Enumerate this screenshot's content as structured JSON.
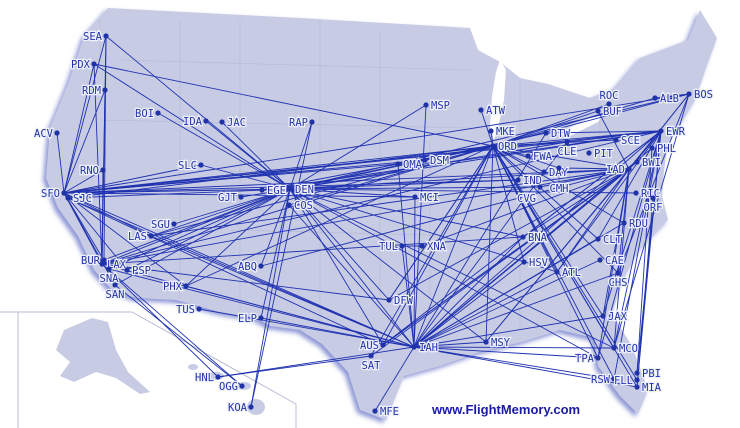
{
  "map": {
    "watermark": "www.FlightMemory.com",
    "colors": {
      "land": "#c8cbe4",
      "route": "#1f32b0",
      "airport": "#1f32a8",
      "label": "#2233aa",
      "border": "#a9acc4",
      "shadow": "#8e97d6"
    },
    "airports": [
      "SEA",
      "PDX",
      "RDM",
      "ACV",
      "RNO",
      "SFO",
      "SJC",
      "BOI",
      "IDA",
      "JAC",
      "SLC",
      "RAP",
      "GJT",
      "EGE",
      "DEN",
      "COS",
      "SGU",
      "LAS",
      "BUR",
      "LAX",
      "SNA",
      "PSP",
      "SAN",
      "PHX",
      "ABQ",
      "TUS",
      "ELP",
      "HNL",
      "OGG",
      "KOA",
      "MSP",
      "ATW",
      "MKE",
      "ORD",
      "OMA",
      "DSM",
      "MCI",
      "DTW",
      "CLE",
      "FWA",
      "DAY",
      "CMH",
      "IND",
      "CVG",
      "PIT",
      "SCE",
      "BUF",
      "ROC",
      "ALB",
      "BOS",
      "EWR",
      "PHL",
      "BWI",
      "IAD",
      "RIC",
      "ORF",
      "RDU",
      "CLT",
      "CAE",
      "CHS",
      "BNA",
      "HSV",
      "ATL",
      "TUL",
      "XNA",
      "DFW",
      "AUS",
      "IAH",
      "SAT",
      "MSY",
      "JAX",
      "MCO",
      "TPA",
      "RSW",
      "PBI",
      "FLL",
      "MIA",
      "MFE"
    ],
    "routes": [
      [
        "SEA",
        "SFO"
      ],
      [
        "SEA",
        "LAX"
      ],
      [
        "SEA",
        "DEN"
      ],
      [
        "SEA",
        "BUR"
      ],
      [
        "PDX",
        "SFO"
      ],
      [
        "PDX",
        "LAX"
      ],
      [
        "PDX",
        "ORD"
      ],
      [
        "PDX",
        "DEN"
      ],
      [
        "RDM",
        "SFO"
      ],
      [
        "RDM",
        "LAX"
      ],
      [
        "ACV",
        "SFO"
      ],
      [
        "RNO",
        "LAX"
      ],
      [
        "RNO",
        "SFO"
      ],
      [
        "BOI",
        "DEN"
      ],
      [
        "IDA",
        "DEN"
      ],
      [
        "JAC",
        "DEN"
      ],
      [
        "SLC",
        "DEN"
      ],
      [
        "SLC",
        "SFO"
      ],
      [
        "RAP",
        "DEN"
      ],
      [
        "RAP",
        "KOA"
      ],
      [
        "SFO",
        "DEN"
      ],
      [
        "SFO",
        "ORD"
      ],
      [
        "SFO",
        "EWR"
      ],
      [
        "SFO",
        "IAD"
      ],
      [
        "SFO",
        "IAH"
      ],
      [
        "SFO",
        "BOS"
      ],
      [
        "SFO",
        "LAS"
      ],
      [
        "SFO",
        "LAX"
      ],
      [
        "SFO",
        "SAN"
      ],
      [
        "SFO",
        "PHX"
      ],
      [
        "SFO",
        "OMA"
      ],
      [
        "SFO",
        "DSM"
      ],
      [
        "SFO",
        "CLE"
      ],
      [
        "SFO",
        "MCI"
      ],
      [
        "SFO",
        "PSP"
      ],
      [
        "SFO",
        "SNA"
      ],
      [
        "SJC",
        "ORD"
      ],
      [
        "SJC",
        "DEN"
      ],
      [
        "SJC",
        "IAH"
      ],
      [
        "SJC",
        "AUS"
      ],
      [
        "LAX",
        "DEN"
      ],
      [
        "LAX",
        "ORD"
      ],
      [
        "LAX",
        "IAD"
      ],
      [
        "LAX",
        "EWR"
      ],
      [
        "LAX",
        "IAH"
      ],
      [
        "LAX",
        "HNL"
      ],
      [
        "LAX",
        "OGG"
      ],
      [
        "LAX",
        "DFW"
      ],
      [
        "SNA",
        "DEN"
      ],
      [
        "SNA",
        "IAH"
      ],
      [
        "PSP",
        "DEN"
      ],
      [
        "SAN",
        "DEN"
      ],
      [
        "SAN",
        "OGG"
      ],
      [
        "BUR",
        "DEN"
      ],
      [
        "LAS",
        "DEN"
      ],
      [
        "LAS",
        "ORD"
      ],
      [
        "LAS",
        "IAD"
      ],
      [
        "LAS",
        "IAH"
      ],
      [
        "SGU",
        "DEN"
      ],
      [
        "PHX",
        "DEN"
      ],
      [
        "PHX",
        "IAH"
      ],
      [
        "PHX",
        "ORD"
      ],
      [
        "ABQ",
        "DEN"
      ],
      [
        "ABQ",
        "IAD"
      ],
      [
        "TUS",
        "IAH"
      ],
      [
        "ELP",
        "IAH"
      ],
      [
        "ELP",
        "DEN"
      ],
      [
        "HNL",
        "IAH"
      ],
      [
        "KOA",
        "DEN"
      ],
      [
        "GJT",
        "DEN"
      ],
      [
        "EGE",
        "ORD"
      ],
      [
        "EGE",
        "EWR"
      ],
      [
        "COS",
        "IAH"
      ],
      [
        "COS",
        "ORD"
      ],
      [
        "DEN",
        "ORD"
      ],
      [
        "DEN",
        "EWR"
      ],
      [
        "DEN",
        "IAD"
      ],
      [
        "DEN",
        "IAH"
      ],
      [
        "DEN",
        "MSP"
      ],
      [
        "DEN",
        "BOS"
      ],
      [
        "DEN",
        "ATL"
      ],
      [
        "DEN",
        "DTW"
      ],
      [
        "DEN",
        "MCO"
      ],
      [
        "DEN",
        "TPA"
      ],
      [
        "DEN",
        "BNA"
      ],
      [
        "DEN",
        "DFW"
      ],
      [
        "DEN",
        "MSY"
      ],
      [
        "DEN",
        "AUS"
      ],
      [
        "DEN",
        "MCI"
      ],
      [
        "DEN",
        "CLE"
      ],
      [
        "ORD",
        "EWR"
      ],
      [
        "ORD",
        "BOS"
      ],
      [
        "ORD",
        "IAD"
      ],
      [
        "ORD",
        "IAH"
      ],
      [
        "ORD",
        "ATL"
      ],
      [
        "ORD",
        "MCO"
      ],
      [
        "ORD",
        "MIA"
      ],
      [
        "ORD",
        "TPA"
      ],
      [
        "ORD",
        "FLL"
      ],
      [
        "ORD",
        "SAT"
      ],
      [
        "ORD",
        "AUS"
      ],
      [
        "ORD",
        "ALB"
      ],
      [
        "ORD",
        "BUF"
      ],
      [
        "ORD",
        "ROC"
      ],
      [
        "ORD",
        "SCE"
      ],
      [
        "ORD",
        "CLT"
      ],
      [
        "ORD",
        "RDU"
      ],
      [
        "ORD",
        "DFW"
      ],
      [
        "ORD",
        "CMH"
      ],
      [
        "ORD",
        "DAY"
      ],
      [
        "ORD",
        "FWA"
      ],
      [
        "ORD",
        "ATW"
      ],
      [
        "ORD",
        "MKE"
      ],
      [
        "ORD",
        "OMA"
      ],
      [
        "ORD",
        "MSY"
      ],
      [
        "ORD",
        "JAX"
      ],
      [
        "ORD",
        "RSW"
      ],
      [
        "ORD",
        "HSV"
      ],
      [
        "ORD",
        "CHS"
      ],
      [
        "MSP",
        "IAH"
      ],
      [
        "EWR",
        "IAH"
      ],
      [
        "EWR",
        "ATL"
      ],
      [
        "EWR",
        "MCO"
      ],
      [
        "EWR",
        "TPA"
      ],
      [
        "EWR",
        "MIA"
      ],
      [
        "EWR",
        "PBI"
      ],
      [
        "EWR",
        "RSW"
      ],
      [
        "EWR",
        "CLE"
      ],
      [
        "EWR",
        "DTW"
      ],
      [
        "EWR",
        "BNA"
      ],
      [
        "EWR",
        "AUS"
      ],
      [
        "EWR",
        "MSY"
      ],
      [
        "EWR",
        "JAX"
      ],
      [
        "EWR",
        "CLT"
      ],
      [
        "IAD",
        "IAH"
      ],
      [
        "IAD",
        "ATL"
      ],
      [
        "IAD",
        "MCO"
      ],
      [
        "IAD",
        "TPA"
      ],
      [
        "IAD",
        "JAX"
      ],
      [
        "IAD",
        "BUF"
      ],
      [
        "IAD",
        "BOS"
      ],
      [
        "IAD",
        "CVG"
      ],
      [
        "IAD",
        "CMH"
      ],
      [
        "IAD",
        "DFW"
      ],
      [
        "IAD",
        "MSY"
      ],
      [
        "IAD",
        "AUS"
      ],
      [
        "IAD",
        "SAT"
      ],
      [
        "IAD",
        "BNA"
      ],
      [
        "IAD",
        "XNA"
      ],
      [
        "IAD",
        "CHS"
      ],
      [
        "IAH",
        "ATL"
      ],
      [
        "IAH",
        "MCO"
      ],
      [
        "IAH",
        "TPA"
      ],
      [
        "IAH",
        "RSW"
      ],
      [
        "IAH",
        "MIA"
      ],
      [
        "IAH",
        "JAX"
      ],
      [
        "IAH",
        "MSY"
      ],
      [
        "IAH",
        "BNA"
      ],
      [
        "IAH",
        "MFE"
      ],
      [
        "IAH",
        "CLE"
      ],
      [
        "IAH",
        "DTW"
      ],
      [
        "IAH",
        "TUL"
      ],
      [
        "IAH",
        "MCI"
      ],
      [
        "IAH",
        "OMA"
      ],
      [
        "IAH",
        "RDU"
      ],
      [
        "IAH",
        "CLT"
      ],
      [
        "IAH",
        "PHL"
      ],
      [
        "IAH",
        "BWI"
      ],
      [
        "IAH",
        "CHS"
      ],
      [
        "SAT",
        "HNL"
      ],
      [
        "AUS",
        "IAD"
      ],
      [
        "DFW",
        "ORD"
      ],
      [
        "BOS",
        "ALB"
      ],
      [
        "BOS",
        "IAD"
      ],
      [
        "BOS",
        "MCO"
      ],
      [
        "BOS",
        "CHS"
      ],
      [
        "RIC",
        "DEN"
      ],
      [
        "ORF",
        "MIA"
      ],
      [
        "PHL",
        "PBI"
      ],
      [
        "CAE",
        "IAH"
      ],
      [
        "TUL",
        "XNA"
      ],
      [
        "IND",
        "DEN"
      ],
      [
        "IND",
        "SFO"
      ],
      [
        "CVG",
        "DEN"
      ],
      [
        "BNA",
        "LAX"
      ],
      [
        "HSV",
        "IAH"
      ]
    ]
  }
}
